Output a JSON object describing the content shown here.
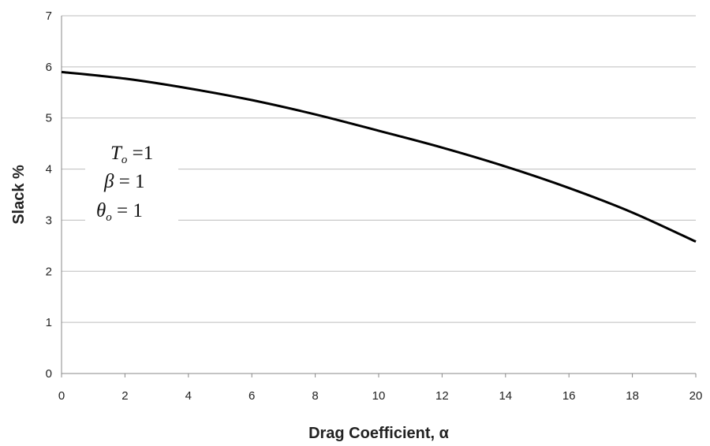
{
  "chart_data": {
    "type": "line",
    "title": "",
    "xlabel": "Drag Coefficient, α",
    "ylabel": "Slack  %",
    "xlim": [
      0,
      20
    ],
    "ylim": [
      0,
      7
    ],
    "xticks": [
      "0",
      "2",
      "4",
      "6",
      "8",
      "10",
      "12",
      "14",
      "16",
      "18",
      "20"
    ],
    "yticks": [
      "0",
      "1",
      "2",
      "3",
      "4",
      "5",
      "6",
      "7"
    ],
    "grid": "horizontal",
    "series": [
      {
        "color": "#000000",
        "x": [
          0,
          2,
          4,
          6,
          8,
          10,
          12,
          14,
          16,
          18,
          20
        ],
        "y": [
          5.9,
          5.77,
          5.58,
          5.35,
          5.07,
          4.75,
          4.42,
          4.05,
          3.63,
          3.15,
          2.58
        ]
      }
    ],
    "annotations": {
      "line1": {
        "symbol": "T",
        "sub": "o",
        "rest": " =1"
      },
      "line2": {
        "symbol": "β",
        "sub": "",
        "rest": " = 1"
      },
      "line3": {
        "symbol": "θ",
        "sub": "o",
        "rest": " = 1"
      }
    }
  }
}
